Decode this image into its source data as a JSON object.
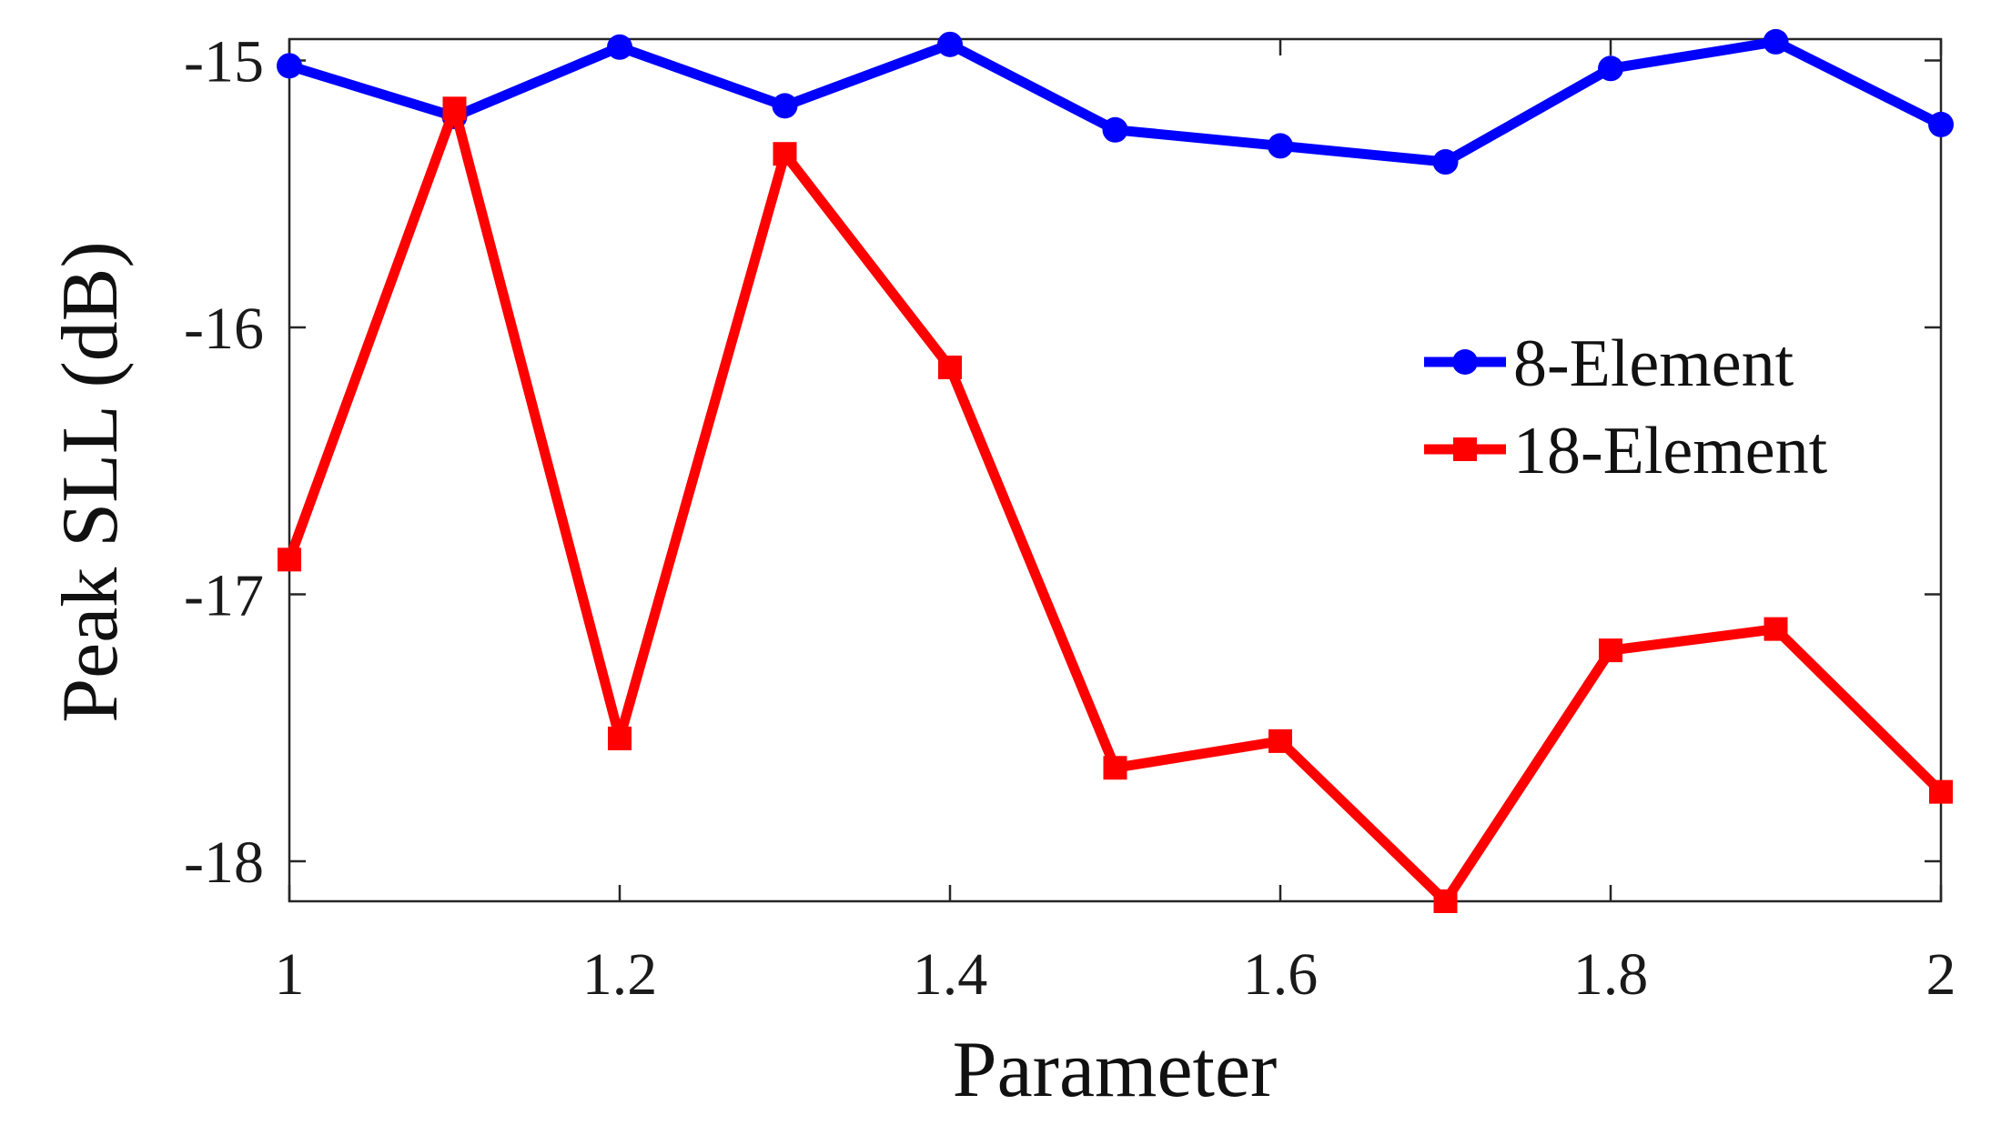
{
  "chart_data": {
    "type": "line",
    "xlabel": "Parameter",
    "ylabel": "Peak SLL (dB)",
    "x": [
      1.0,
      1.1,
      1.2,
      1.3,
      1.4,
      1.5,
      1.6,
      1.7,
      1.8,
      1.9,
      2.0
    ],
    "xlim": [
      1,
      2
    ],
    "ylim": [
      -18.15,
      -14.92
    ],
    "x_ticks": [
      "1",
      "1.2",
      "1.4",
      "1.6",
      "1.8",
      "2"
    ],
    "y_ticks": [
      "-15",
      "-16",
      "-17",
      "-18"
    ],
    "grid": false,
    "legend_position": "right",
    "series": [
      {
        "name": "8-Element",
        "color": "#0000ff",
        "marker": "circle",
        "values": [
          -15.02,
          -15.21,
          -14.95,
          -15.17,
          -14.94,
          -15.26,
          -15.32,
          -15.38,
          -15.03,
          -14.93,
          -15.24
        ]
      },
      {
        "name": "18-Element",
        "color": "#ff0000",
        "marker": "square",
        "values": [
          -16.87,
          -15.18,
          -17.54,
          -15.35,
          -16.15,
          -17.65,
          -17.55,
          -18.15,
          -17.21,
          -17.13,
          -17.74
        ]
      }
    ]
  }
}
